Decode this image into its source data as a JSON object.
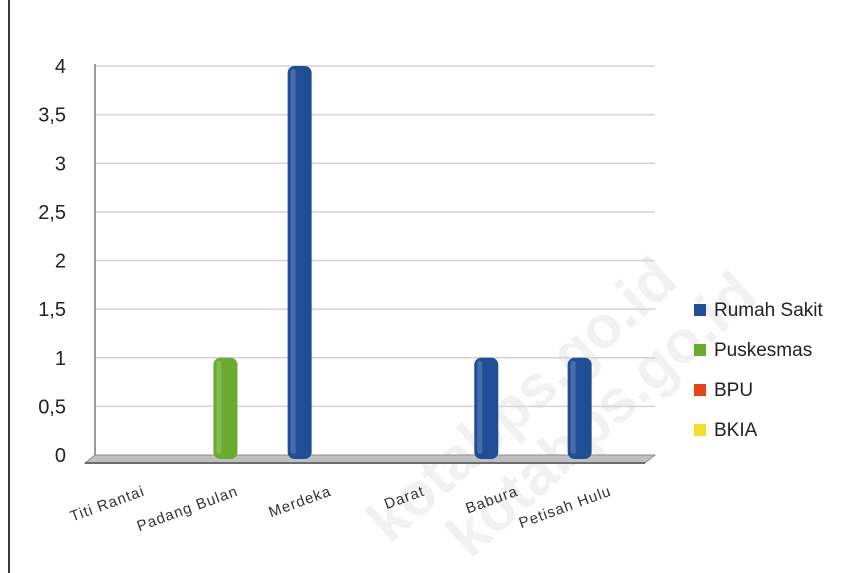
{
  "watermark": "kotabps.go.id",
  "colors": {
    "Rumah Sakit": "#1f4e96",
    "Puskesmas": "#6aab2e",
    "BPU": "#e2441b",
    "BKIA": "#f3dc2a",
    "grid": "#d4d4d4",
    "axis": "#9a9a9a"
  },
  "chart_data": {
    "type": "bar",
    "title": "",
    "xlabel": "",
    "ylabel": "",
    "ylim": [
      0,
      4
    ],
    "yticks": [
      "0",
      "0,5",
      "1",
      "1,5",
      "2",
      "2,5",
      "3",
      "3,5",
      "4"
    ],
    "categories": [
      "Titi Rantai",
      "Padang Bulan",
      "Merdeka",
      "Darat",
      "Babura",
      "Petisah Hulu"
    ],
    "series": [
      {
        "name": "Rumah Sakit",
        "values": [
          0,
          0,
          4,
          0,
          1,
          1
        ]
      },
      {
        "name": "Puskesmas",
        "values": [
          0,
          1,
          0,
          0,
          0,
          0
        ]
      },
      {
        "name": "BPU",
        "values": [
          0,
          0,
          0,
          0,
          0,
          0
        ]
      },
      {
        "name": "BKIA",
        "values": [
          0,
          0,
          0,
          0,
          0,
          0
        ]
      }
    ],
    "grid": true,
    "legend_position": "right"
  }
}
